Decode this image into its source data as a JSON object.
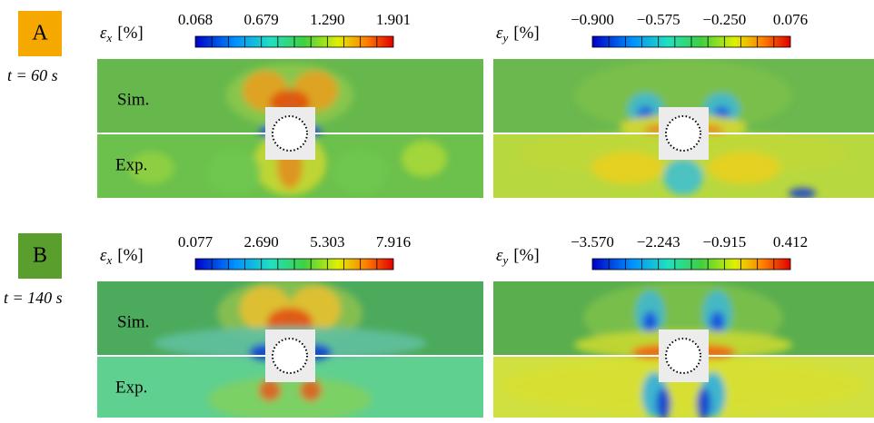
{
  "panels": [
    {
      "badge": "A",
      "time": "t = 60 s",
      "fields": [
        {
          "symbol": "ε",
          "subscript": "x",
          "unit": "[%]",
          "ticks": [
            "0.068",
            "0.679",
            "1.290",
            "1.901"
          ],
          "sim_label": "Sim.",
          "exp_label": "Exp."
        },
        {
          "symbol": "ε",
          "subscript": "y",
          "unit": "[%]",
          "ticks": [
            "−0.900",
            "−0.575",
            "−0.250",
            "0.076"
          ]
        }
      ]
    },
    {
      "badge": "B",
      "time": "t = 140 s",
      "fields": [
        {
          "symbol": "ε",
          "subscript": "x",
          "unit": "[%]",
          "ticks": [
            "0.077",
            "2.690",
            "5.303",
            "7.916"
          ],
          "sim_label": "Sim.",
          "exp_label": "Exp."
        },
        {
          "symbol": "ε",
          "subscript": "y",
          "unit": "[%]",
          "ticks": [
            "−3.570",
            "−2.243",
            "−0.915",
            "0.412"
          ]
        }
      ]
    }
  ]
}
